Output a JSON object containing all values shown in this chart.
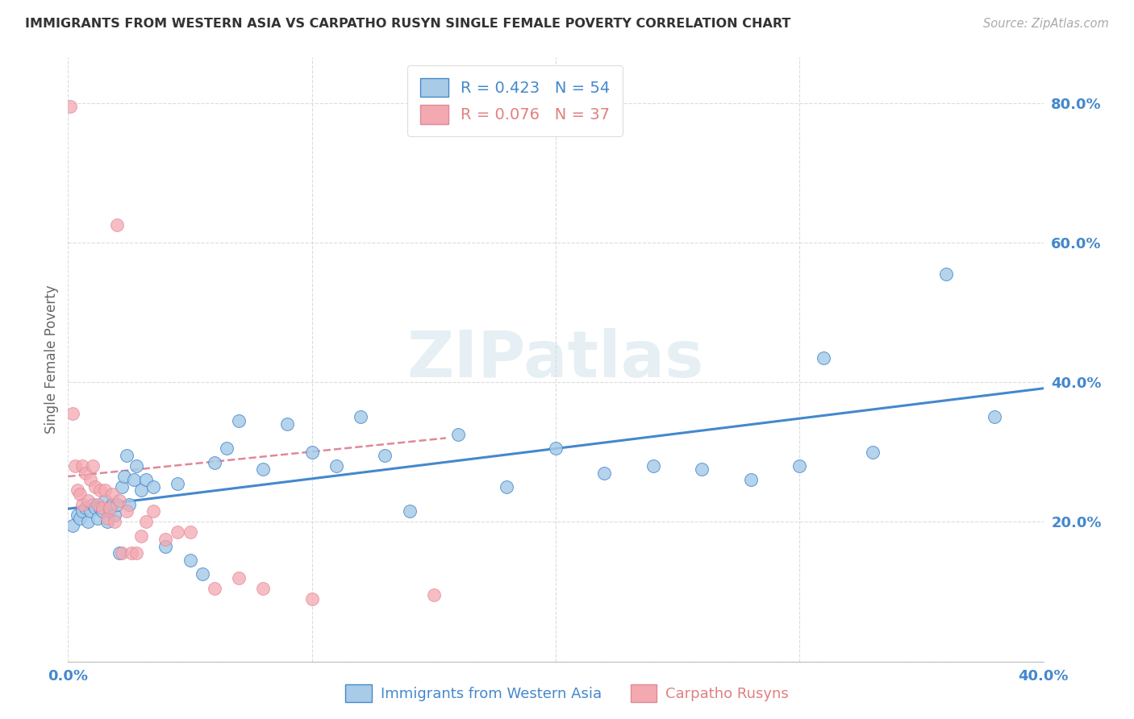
{
  "title": "IMMIGRANTS FROM WESTERN ASIA VS CARPATHO RUSYN SINGLE FEMALE POVERTY CORRELATION CHART",
  "source": "Source: ZipAtlas.com",
  "ylabel": "Single Female Poverty",
  "yticks": [
    0.0,
    0.2,
    0.4,
    0.6,
    0.8
  ],
  "ytick_labels": [
    "",
    "20.0%",
    "40.0%",
    "60.0%",
    "80.0%"
  ],
  "xlim": [
    0.0,
    0.4
  ],
  "ylim": [
    0.0,
    0.865
  ],
  "watermark": "ZIPatlas",
  "blue_R": 0.423,
  "blue_N": 54,
  "pink_R": 0.076,
  "pink_N": 37,
  "blue_color": "#a8cce8",
  "pink_color": "#f4a8b0",
  "blue_line_color": "#4488cc",
  "pink_line_color": "#e08898",
  "axis_color": "#4488cc",
  "pink_text_color": "#e08080",
  "grid_color": "#d8d8d8",
  "title_color": "#333333",
  "source_color": "#aaaaaa",
  "blue_x": [
    0.002,
    0.004,
    0.005,
    0.006,
    0.007,
    0.008,
    0.009,
    0.01,
    0.011,
    0.012,
    0.013,
    0.014,
    0.015,
    0.016,
    0.017,
    0.018,
    0.019,
    0.02,
    0.021,
    0.022,
    0.023,
    0.024,
    0.025,
    0.027,
    0.028,
    0.03,
    0.032,
    0.035,
    0.04,
    0.045,
    0.05,
    0.055,
    0.06,
    0.065,
    0.07,
    0.08,
    0.09,
    0.1,
    0.11,
    0.12,
    0.13,
    0.14,
    0.16,
    0.18,
    0.2,
    0.22,
    0.24,
    0.26,
    0.28,
    0.3,
    0.31,
    0.33,
    0.36,
    0.38
  ],
  "blue_y": [
    0.195,
    0.21,
    0.205,
    0.215,
    0.22,
    0.2,
    0.215,
    0.225,
    0.22,
    0.205,
    0.22,
    0.215,
    0.23,
    0.2,
    0.215,
    0.225,
    0.21,
    0.225,
    0.155,
    0.25,
    0.265,
    0.295,
    0.225,
    0.26,
    0.28,
    0.245,
    0.26,
    0.25,
    0.165,
    0.255,
    0.145,
    0.125,
    0.285,
    0.305,
    0.345,
    0.275,
    0.34,
    0.3,
    0.28,
    0.35,
    0.295,
    0.215,
    0.325,
    0.25,
    0.305,
    0.27,
    0.28,
    0.275,
    0.26,
    0.28,
    0.435,
    0.3,
    0.555,
    0.35
  ],
  "pink_x": [
    0.001,
    0.002,
    0.003,
    0.004,
    0.005,
    0.006,
    0.006,
    0.007,
    0.008,
    0.009,
    0.01,
    0.011,
    0.012,
    0.013,
    0.014,
    0.015,
    0.016,
    0.017,
    0.018,
    0.019,
    0.02,
    0.021,
    0.022,
    0.024,
    0.026,
    0.028,
    0.03,
    0.032,
    0.035,
    0.04,
    0.045,
    0.05,
    0.06,
    0.07,
    0.08,
    0.1,
    0.15
  ],
  "pink_y": [
    0.795,
    0.355,
    0.28,
    0.245,
    0.24,
    0.28,
    0.225,
    0.27,
    0.23,
    0.26,
    0.28,
    0.25,
    0.225,
    0.245,
    0.22,
    0.245,
    0.205,
    0.22,
    0.24,
    0.2,
    0.625,
    0.23,
    0.155,
    0.215,
    0.155,
    0.155,
    0.18,
    0.2,
    0.215,
    0.175,
    0.185,
    0.185,
    0.105,
    0.12,
    0.105,
    0.09,
    0.095
  ],
  "blue_trend_x": [
    0.0,
    0.4
  ],
  "blue_trend_y_intercept": 0.185,
  "blue_trend_slope": 0.5,
  "pink_trend_x": [
    0.0,
    0.155
  ],
  "pink_trend_y_start": 0.265,
  "pink_trend_y_end": 0.32
}
